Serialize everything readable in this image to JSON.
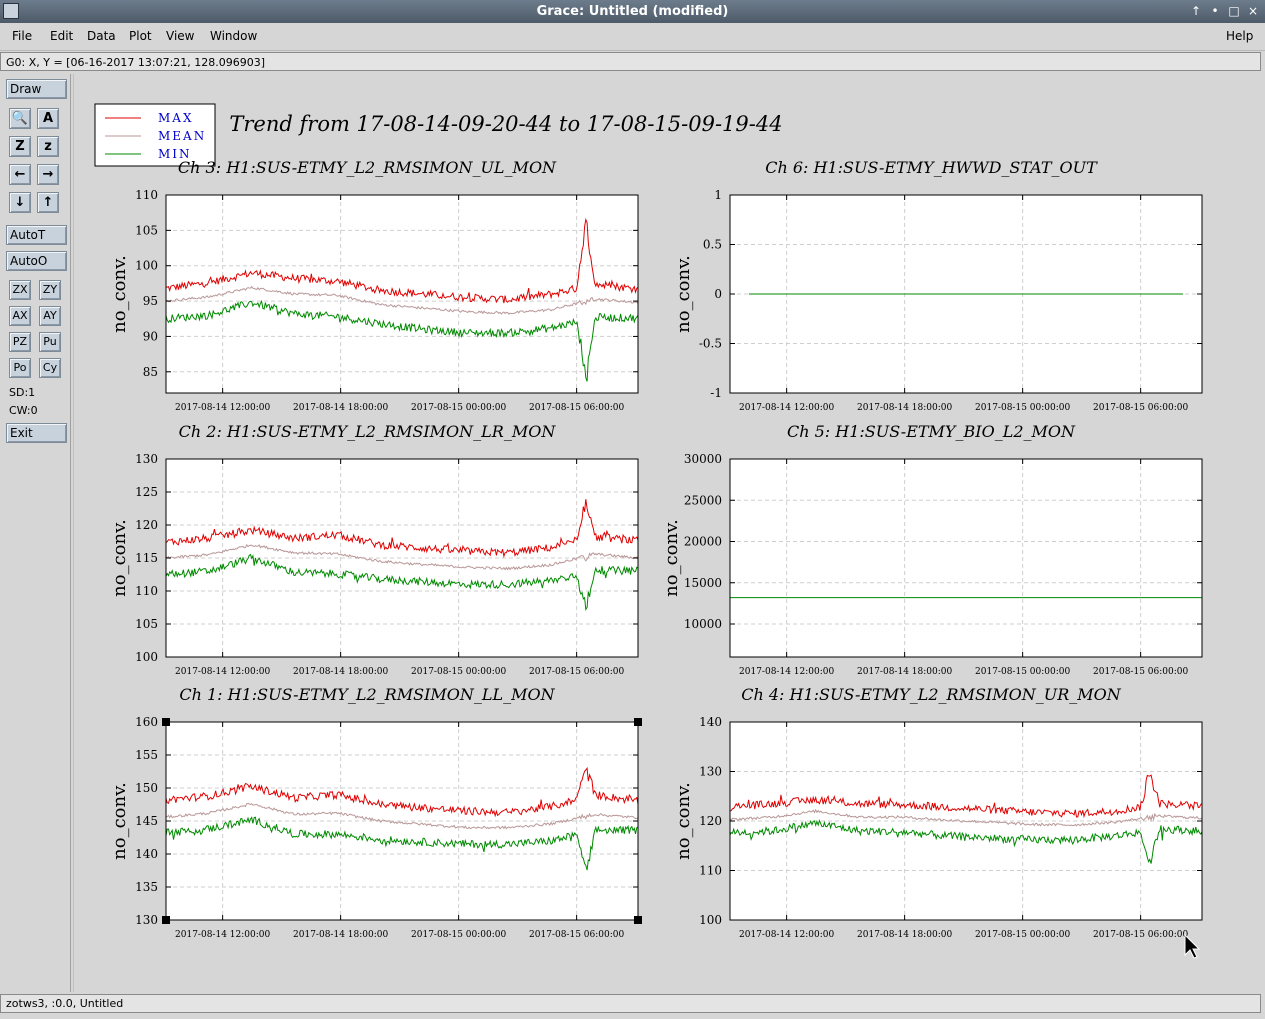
{
  "window": {
    "title": "Grace: Untitled (modified)",
    "controls": [
      "↑",
      "•",
      "□",
      "×"
    ]
  },
  "menu": {
    "items": [
      "File",
      "Edit",
      "Data",
      "Plot",
      "View",
      "Window"
    ],
    "help": "Help"
  },
  "status": {
    "locator": "G0: X, Y = [06-16-2017 13:07:21, 128.096903]"
  },
  "toolbar": {
    "draw": "Draw",
    "icon_rows": [
      [
        {
          "name": "zoom-icon",
          "glyph": "🔍"
        },
        {
          "name": "text-icon",
          "glyph": "A"
        }
      ],
      [
        {
          "name": "zoom-z-icon",
          "glyph": "Z"
        },
        {
          "name": "unzoom-z-icon",
          "glyph": "z"
        }
      ],
      [
        {
          "name": "arrow-left-icon",
          "glyph": "←"
        },
        {
          "name": "arrow-right-icon",
          "glyph": "→"
        }
      ],
      [
        {
          "name": "arrow-down-icon",
          "glyph": "↓"
        },
        {
          "name": "arrow-up-icon",
          "glyph": "↑"
        }
      ]
    ],
    "autot": "AutoT",
    "autoo": "AutoO",
    "pairs": [
      [
        "ZX",
        "ZY"
      ],
      [
        "AX",
        "AY"
      ],
      [
        "PZ",
        "Pu"
      ],
      [
        "Po",
        "Cy"
      ]
    ],
    "sd": "SD:1",
    "cw": "CW:0",
    "exit": "Exit"
  },
  "bottom": {
    "text": "zotws3, :0.0, Untitled"
  },
  "colors": {
    "max": "#e00000",
    "mean": "#b99797",
    "min": "#008a00"
  },
  "chart_data": {
    "type": "line",
    "title": "Trend from 17-08-14-09-20-44 to 17-08-15-09-19-44",
    "legend": {
      "placement": "top-left",
      "entries": [
        "MAX",
        "MEAN",
        "MIN"
      ]
    },
    "x_ticks": [
      "2017-08-14 12:00:00",
      "2017-08-14 18:00:00",
      "2017-08-15 00:00:00",
      "2017-08-15 06:00:00"
    ],
    "panels": [
      {
        "title": "Ch 3: H1:SUS-ETMY_L2_RMSIMON_UL_MON",
        "ylabel": "no_conv.",
        "ylim": [
          82,
          110
        ],
        "yticks": [
          85,
          90,
          95,
          100,
          105,
          110
        ],
        "series": [
          {
            "name": "MAX",
            "y": [
              96.8,
              97.6,
              99.0,
              98.2,
              97.8,
              96.5,
              96.0,
              95.5,
              95.2,
              96.0,
              97.4,
              96.7
            ]
          },
          {
            "name": "MEAN",
            "y": [
              95.0,
              95.6,
              96.9,
              96.0,
              95.8,
              94.5,
              94.0,
              93.5,
              93.3,
              93.8,
              95.3,
              94.8
            ]
          },
          {
            "name": "MIN",
            "y": [
              92.5,
              93.0,
              94.8,
              93.2,
              92.8,
              91.8,
              91.0,
              90.5,
              90.5,
              91.2,
              92.7,
              92.6
            ]
          }
        ],
        "spike": {
          "x": 0.89,
          "max": 107.2,
          "min": 82.0
        },
        "grid": true
      },
      {
        "title": "Ch 6: H1:SUS-ETMY_HWWD_STAT_OUT",
        "ylabel": "no_conv.",
        "ylim": [
          -1,
          1
        ],
        "yticks": [
          -1,
          -0.5,
          0,
          0.5,
          1
        ],
        "series": [
          {
            "name": "MIN",
            "y": [
              0,
              0,
              0,
              0,
              0,
              0,
              0,
              0,
              0,
              0,
              0,
              0
            ]
          }
        ],
        "grid": true
      },
      {
        "title": "Ch 2: H1:SUS-ETMY_L2_RMSIMON_LR_MON",
        "ylabel": "no_conv.",
        "ylim": [
          100,
          130
        ],
        "yticks": [
          100,
          105,
          110,
          115,
          120,
          125,
          130
        ],
        "series": [
          {
            "name": "MAX",
            "y": [
              117.4,
              118.0,
              119.2,
              118.0,
              118.5,
              117.0,
              116.5,
              116.0,
              115.8,
              116.6,
              118.2,
              117.6
            ]
          },
          {
            "name": "MEAN",
            "y": [
              115.0,
              115.5,
              117.0,
              115.8,
              115.6,
              114.5,
              114.0,
              113.6,
              113.4,
              114.0,
              115.6,
              115.0
            ]
          },
          {
            "name": "MIN",
            "y": [
              112.5,
              113.0,
              115.0,
              112.8,
              112.6,
              111.8,
              111.4,
              111.0,
              111.0,
              111.6,
              113.2,
              113.0
            ]
          }
        ],
        "spike": {
          "x": 0.89,
          "max": 125.0,
          "min": 105.8
        },
        "grid": true
      },
      {
        "title": "Ch 5: H1:SUS-ETMY_BIO_L2_MON",
        "ylabel": "no_conv.",
        "ylim": [
          6000,
          30000
        ],
        "yticks": [
          10000,
          15000,
          20000,
          25000,
          30000
        ],
        "series": [
          {
            "name": "MIN",
            "y": [
              13200,
              13200,
              13200,
              13200,
              13200,
              13200,
              13200,
              13200,
              13200,
              13200,
              13200,
              13200
            ]
          }
        ],
        "grid": true
      },
      {
        "title": "Ch 1: H1:SUS-ETMY_L2_RMSIMON_LL_MON",
        "ylabel": "no_conv.",
        "ylim": [
          130,
          160
        ],
        "yticks": [
          130,
          135,
          140,
          145,
          150,
          155,
          160
        ],
        "series": [
          {
            "name": "MAX",
            "y": [
              148.2,
              148.8,
              150.2,
              148.5,
              149.0,
              147.5,
              147.0,
              146.5,
              146.3,
              147.2,
              149.0,
              148.0
            ]
          },
          {
            "name": "MEAN",
            "y": [
              145.6,
              146.2,
              147.6,
              146.0,
              146.2,
              145.0,
              144.5,
              144.0,
              144.0,
              144.6,
              146.0,
              145.5
            ]
          },
          {
            "name": "MIN",
            "y": [
              143.2,
              143.8,
              145.2,
              143.0,
              143.0,
              142.2,
              141.8,
              141.5,
              141.5,
              142.0,
              143.6,
              143.6
            ]
          }
        ],
        "spike": {
          "x": 0.89,
          "max": 154.5,
          "min": 136.5
        },
        "grid": true
      },
      {
        "title": "Ch 4: H1:SUS-ETMY_L2_RMSIMON_UR_MON",
        "ylabel": "no_conv.",
        "ylim": [
          100,
          140
        ],
        "yticks": [
          100,
          110,
          120,
          130,
          140
        ],
        "series": [
          {
            "name": "MAX",
            "y": [
              122.8,
              123.5,
              124.3,
              123.5,
              123.3,
              122.8,
              122.3,
              121.8,
              121.5,
              122.0,
              123.5,
              123.0
            ]
          },
          {
            "name": "MEAN",
            "y": [
              120.3,
              120.8,
              122.0,
              120.8,
              120.8,
              120.2,
              119.8,
              119.3,
              119.2,
              119.8,
              121.0,
              120.6
            ]
          },
          {
            "name": "MIN",
            "y": [
              117.6,
              118.0,
              119.6,
              118.0,
              117.8,
              117.0,
              116.6,
              116.2,
              116.2,
              117.0,
              118.4,
              118.0
            ]
          }
        ],
        "spike": {
          "x": 0.89,
          "max": 131.8,
          "min": 109.5
        },
        "grid": true
      }
    ]
  }
}
